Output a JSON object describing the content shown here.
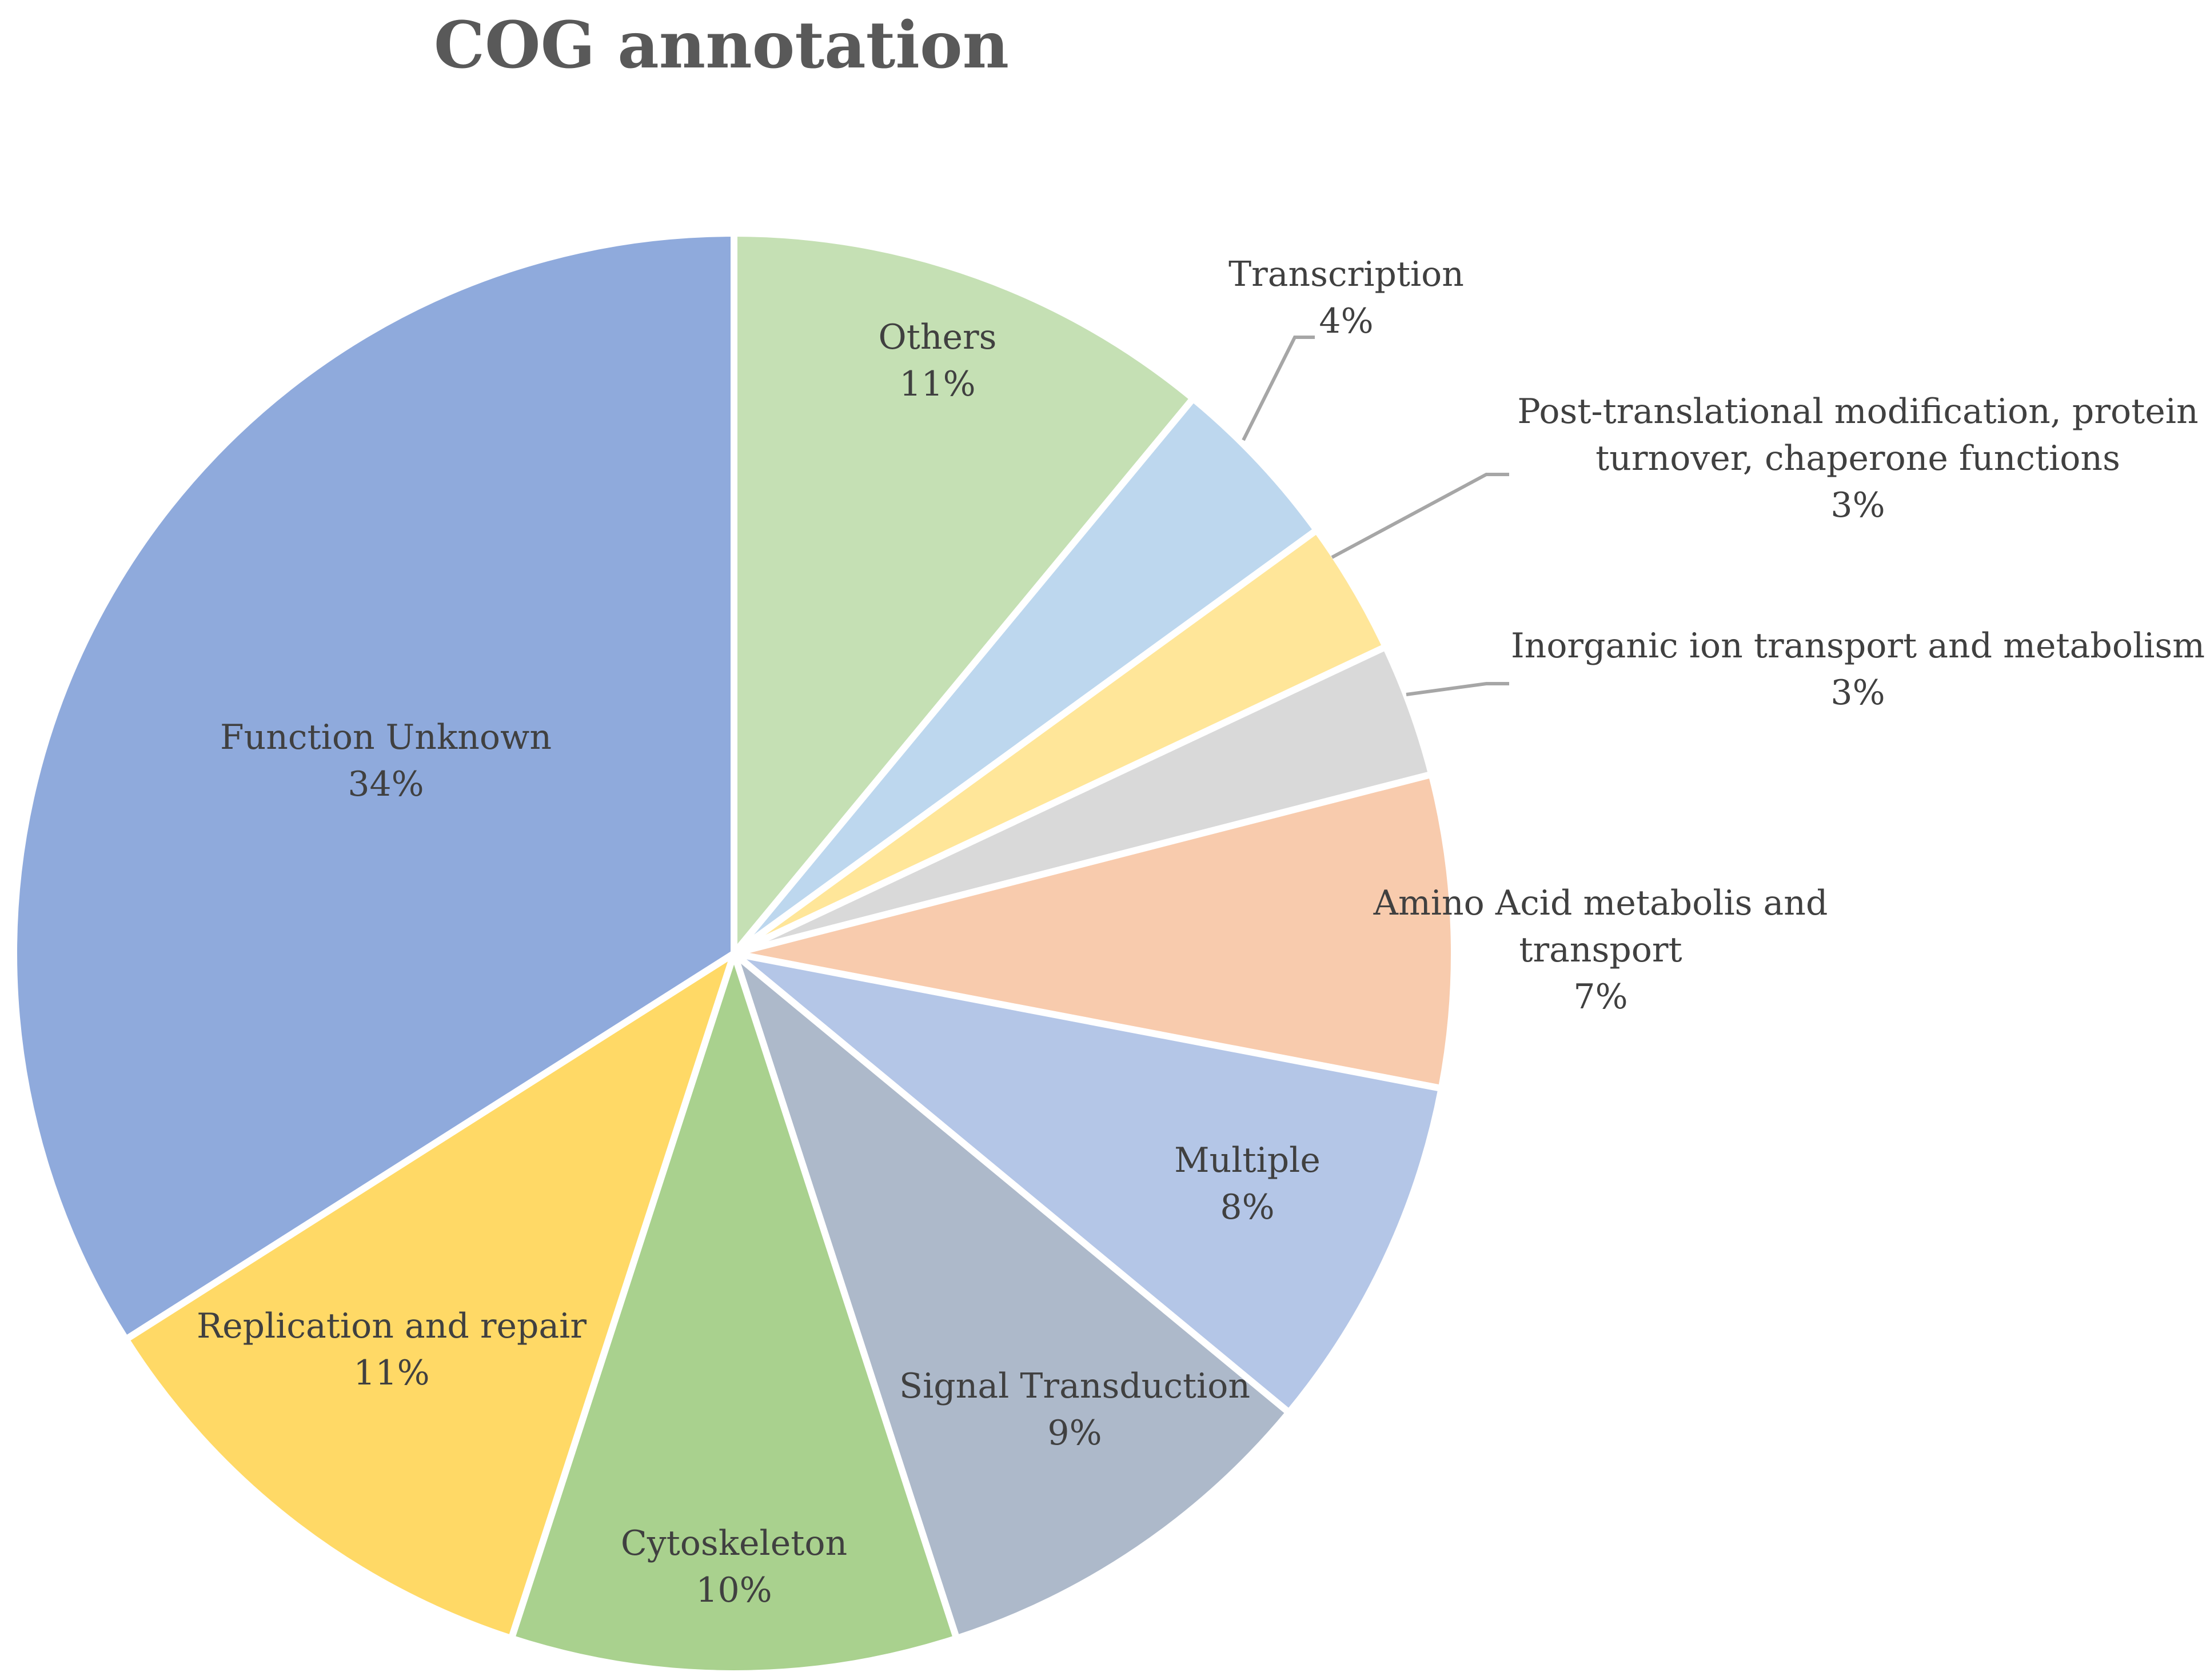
{
  "chart_data": {
    "type": "pie",
    "title": "COG annotation",
    "slices": [
      {
        "label": "Others",
        "value": 11,
        "percent_label": "11%",
        "color": "#c5e0b4"
      },
      {
        "label": "Transcription",
        "value": 4,
        "percent_label": "4%",
        "color": "#bdd7ee"
      },
      {
        "label": "Post-translational modification, protein turnover, chaperone functions",
        "label_lines": [
          "Post-translational modification, protein",
          "turnover, chaperone functions"
        ],
        "value": 3,
        "percent_label": "3%",
        "color": "#ffe699"
      },
      {
        "label": "Inorganic ion transport and metabolism",
        "value": 3,
        "percent_label": "3%",
        "color": "#d9d9d9"
      },
      {
        "label": "Amino Acid metabolis and transport",
        "label_lines": [
          "Amino Acid metabolis and",
          "transport"
        ],
        "value": 7,
        "percent_label": "7%",
        "color": "#f8cbad"
      },
      {
        "label": "Multiple",
        "value": 8,
        "percent_label": "8%",
        "color": "#b4c6e7"
      },
      {
        "label": "Signal Transduction",
        "value": 9,
        "percent_label": "9%",
        "color": "#adb9ca"
      },
      {
        "label": "Cytoskeleton",
        "value": 10,
        "percent_label": "10%",
        "color": "#a9d18e"
      },
      {
        "label": "Replication and repair",
        "value": 11,
        "percent_label": "11%",
        "color": "#ffd966"
      },
      {
        "label": "Function Unknown",
        "value": 34,
        "percent_label": "34%",
        "color": "#8faadc"
      }
    ],
    "start_angle": "12 o'clock",
    "direction": "clockwise",
    "legend": "none"
  }
}
